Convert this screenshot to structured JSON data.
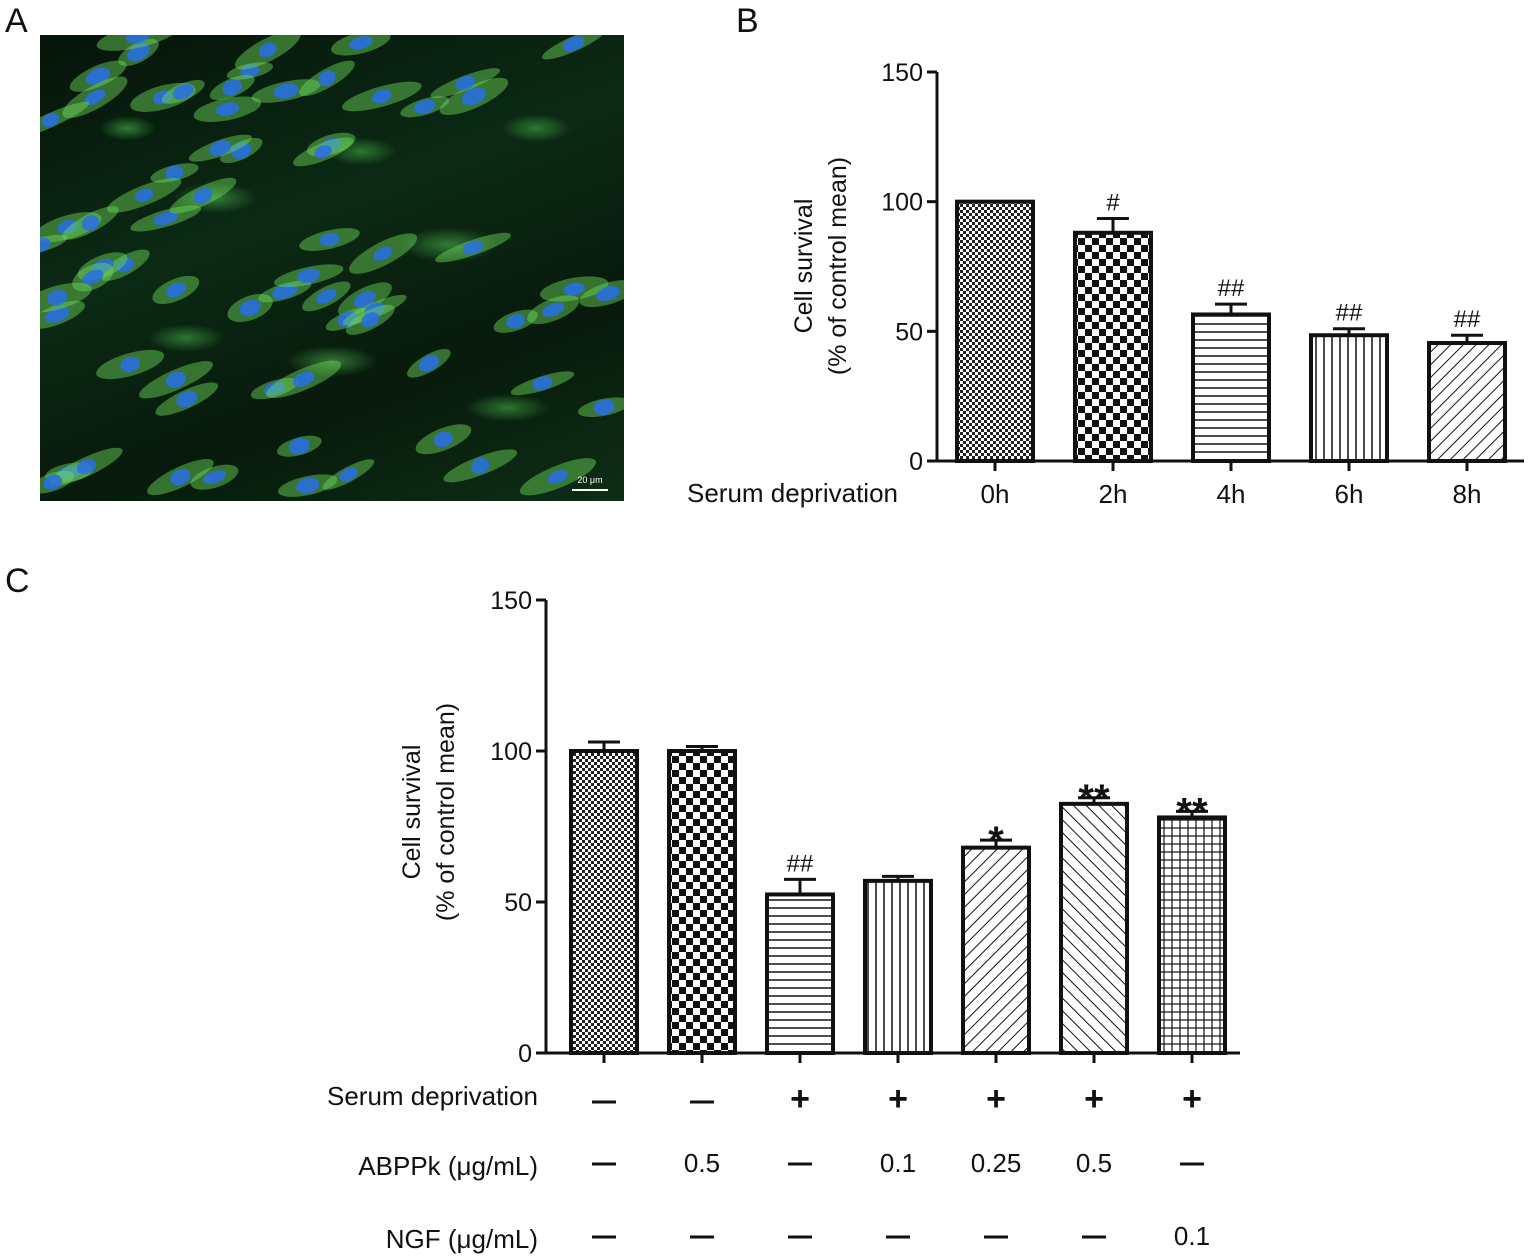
{
  "panels": {
    "a": "A",
    "b": "B",
    "c": "C"
  },
  "micrograph": {
    "scale_bar_label": "20 μm"
  },
  "chart_data": [
    {
      "type": "bar",
      "panel": "B",
      "ylabel_line1": "Cell survival",
      "ylabel_line2": "(% of control mean)",
      "ylim": [
        0,
        150
      ],
      "yticks": [
        0,
        50,
        100,
        150
      ],
      "row_label": "Serum deprivation",
      "categories": [
        "0h",
        "2h",
        "4h",
        "6h",
        "8h"
      ],
      "values": [
        100,
        88,
        56.5,
        48.5,
        45.5
      ],
      "errors": [
        0,
        5.5,
        4,
        2.5,
        3
      ],
      "annotations": [
        "",
        "#",
        "##",
        "##",
        "##"
      ],
      "patterns": [
        "fine-check",
        "coarse-check",
        "horizontal",
        "vertical",
        "diagonal-up"
      ]
    },
    {
      "type": "bar",
      "panel": "C",
      "ylabel_line1": "Cell survival",
      "ylabel_line2": "(% of control mean)",
      "ylim": [
        0,
        150
      ],
      "yticks": [
        0,
        50,
        100,
        150
      ],
      "values": [
        100,
        100,
        52.5,
        57,
        68,
        82.5,
        78
      ],
      "errors": [
        3,
        1.5,
        5,
        1.5,
        2.5,
        2,
        2
      ],
      "annotations": [
        "",
        "",
        "##",
        "",
        "*",
        "**",
        "**"
      ],
      "patterns": [
        "fine-check",
        "coarse-check",
        "horizontal",
        "vertical",
        "diagonal-up",
        "diagonal-down",
        "grid"
      ],
      "condition_rows": [
        {
          "label": "Serum deprivation",
          "values": [
            "—",
            "—",
            "+",
            "+",
            "+",
            "+",
            "+"
          ]
        },
        {
          "label": "ABPPk (μg/mL)",
          "values": [
            "—",
            "0.5",
            "—",
            "0.1",
            "0.25",
            "0.5",
            "—"
          ]
        },
        {
          "label": "NGF (μg/mL)",
          "values": [
            "—",
            "—",
            "—",
            "—",
            "—",
            "—",
            "0.1"
          ]
        }
      ]
    }
  ]
}
